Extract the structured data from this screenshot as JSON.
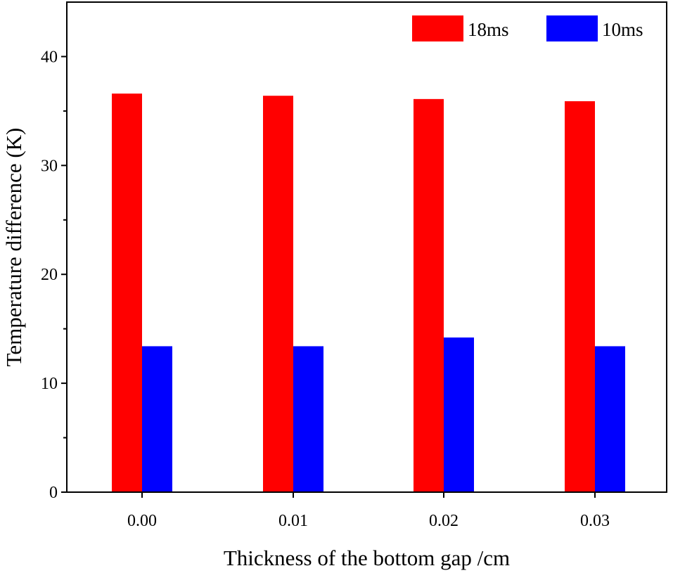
{
  "chart_data": {
    "type": "bar",
    "title": "",
    "xlabel": "Thickness of the bottom gap /cm",
    "ylabel": "Temperature difference (K)",
    "categories": [
      "0.00",
      "0.01",
      "0.02",
      "0.03"
    ],
    "series": [
      {
        "name": "18ms",
        "color": "#ff0000",
        "values": [
          36.6,
          36.4,
          36.1,
          35.9
        ]
      },
      {
        "name": "10ms",
        "color": "#0000ff",
        "values": [
          13.4,
          13.4,
          14.2,
          13.4
        ]
      }
    ],
    "ylim": [
      0,
      45
    ],
    "yticks": [
      0,
      10,
      20,
      30,
      40
    ],
    "y_minor_step": 5,
    "grid": false,
    "legend_position": "top-right"
  }
}
